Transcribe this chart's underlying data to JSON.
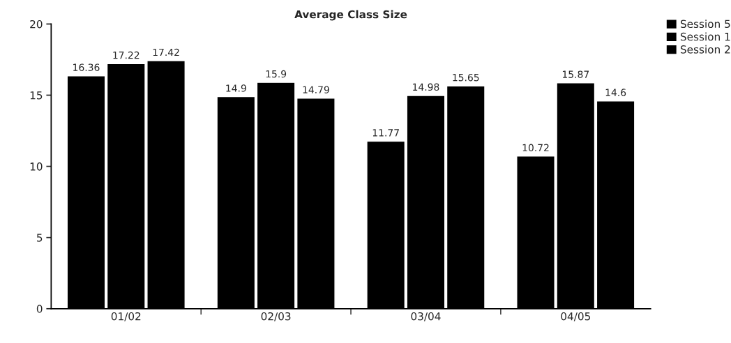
{
  "chart_data": {
    "type": "bar",
    "title": "Average Class Size",
    "categories": [
      "01/02",
      "02/03",
      "03/04",
      "04/05"
    ],
    "series": [
      {
        "name": "Session 5",
        "color": "#000000",
        "values": [
          16.36,
          14.9,
          11.77,
          10.72
        ]
      },
      {
        "name": "Session 1",
        "color": "#000000",
        "values": [
          17.22,
          15.9,
          14.98,
          15.87
        ]
      },
      {
        "name": "Session 2",
        "color": "#000000",
        "values": [
          17.42,
          14.79,
          15.65,
          14.6
        ]
      }
    ],
    "ylim": [
      0,
      20
    ],
    "yticks": [
      0,
      5,
      10,
      15,
      20
    ],
    "data_labels": true,
    "legend": "top right",
    "grid": false
  }
}
